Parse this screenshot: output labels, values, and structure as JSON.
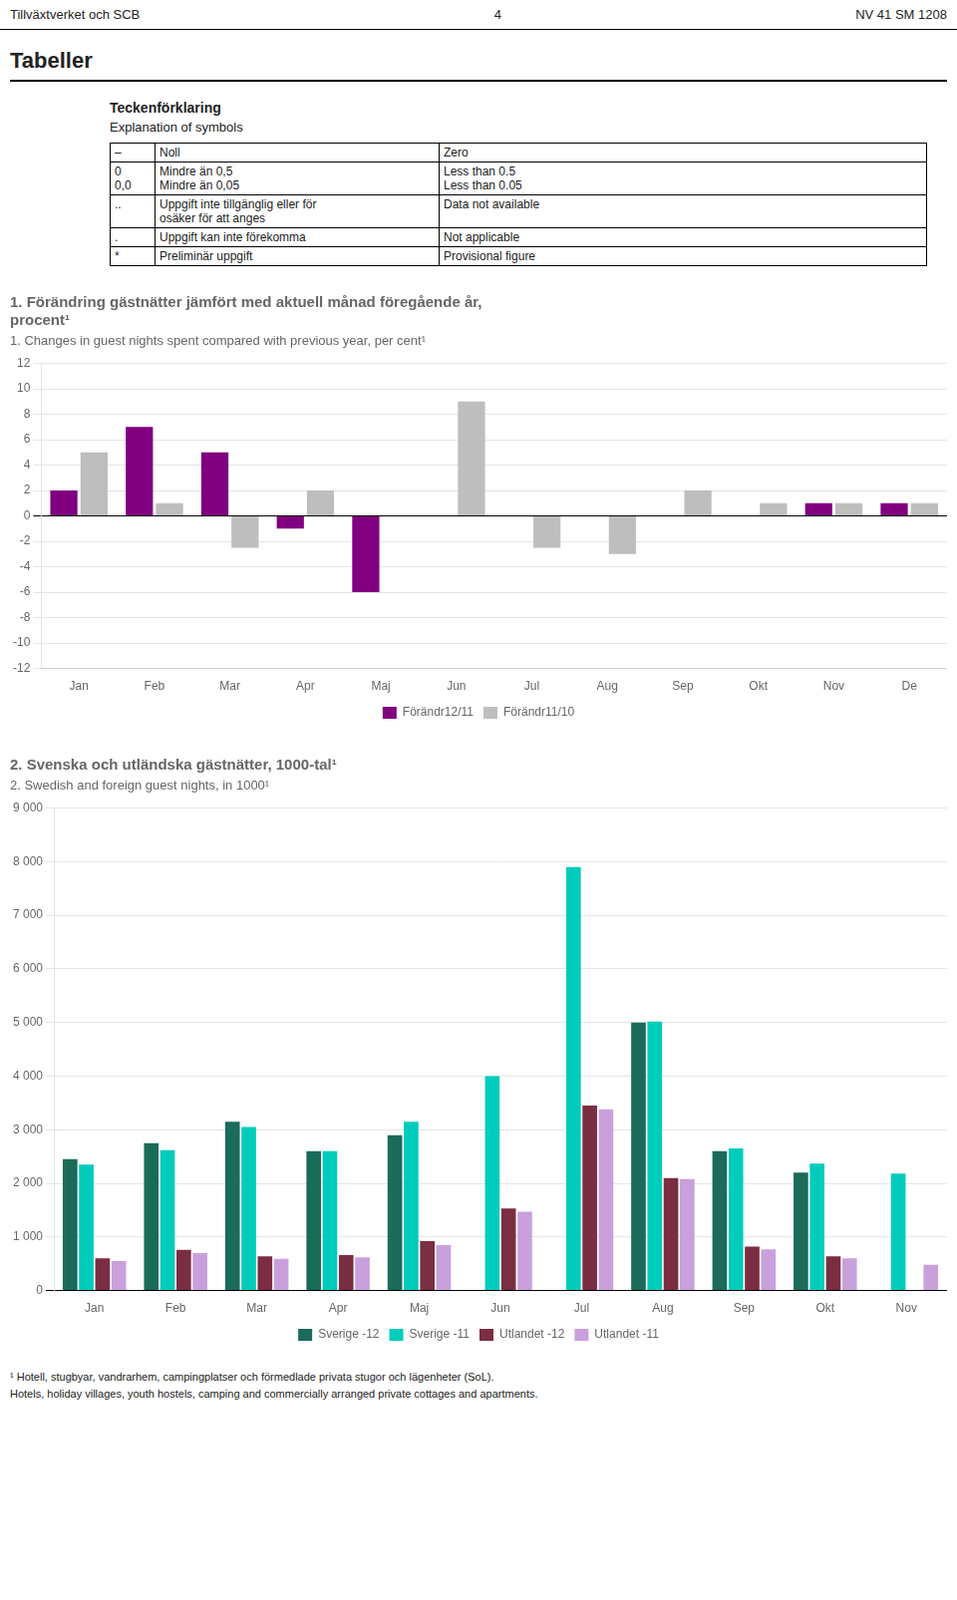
{
  "header": {
    "left": "Tillväxtverket och SCB",
    "center": "4",
    "right": "NV 41 SM 1208"
  },
  "section_title": "Tabeller",
  "symbols": {
    "title": "Teckenförklaring",
    "subtitle": "Explanation of symbols",
    "rows": [
      [
        "–",
        "Noll",
        "Zero"
      ],
      [
        "0\n0,0",
        "Mindre än 0,5\nMindre än 0,05",
        "Less than 0.5\nLess than 0.05"
      ],
      [
        "..",
        "Uppgift inte tillgänglig eller för\nosäker för att anges",
        "Data not available"
      ],
      [
        ".",
        "Uppgift kan inte förekomma",
        "Not applicable"
      ],
      [
        "*",
        "Preliminär uppgift",
        "Provisional figure"
      ]
    ]
  },
  "chart_data": [
    {
      "type": "bar",
      "title": "1. Förändring gästnätter jämfört med aktuell månad föregående år,\nprocent¹",
      "subtitle": "1. Changes in guest nights spent compared with previous year, per cent¹",
      "categories": [
        "Jan",
        "Feb",
        "Mar",
        "Apr",
        "Maj",
        "Jun",
        "Jul",
        "Aug",
        "Sep",
        "Okt",
        "Nov",
        "De"
      ],
      "series": [
        {
          "name": "Förändr12/11",
          "color": "#800080",
          "values": [
            2,
            7,
            5,
            -1,
            -6,
            0,
            0,
            0,
            0,
            0,
            1,
            1
          ]
        },
        {
          "name": "Förändr11/10",
          "color": "#BEBEBE",
          "values": [
            5,
            1,
            -2.5,
            2,
            0,
            9,
            -2.5,
            -3,
            2,
            1,
            1,
            1
          ]
        }
      ],
      "ylim": [
        -12,
        12
      ],
      "yticks": [
        -12,
        -10,
        -8,
        -6,
        -4,
        -2,
        0,
        2,
        4,
        6,
        8,
        10,
        12
      ],
      "grid": true,
      "legend": "bottom"
    },
    {
      "type": "bar",
      "title": "2. Svenska och utländska gästnätter, 1000-tal¹",
      "subtitle": "2. Swedish and foreign guest nights, in 1000¹",
      "categories": [
        "Jan",
        "Feb",
        "Mar",
        "Apr",
        "Maj",
        "Jun",
        "Jul",
        "Aug",
        "Sep",
        "Okt",
        "Nov"
      ],
      "series": [
        {
          "name": "Sverige -12",
          "color": "#1a6b5a",
          "values": [
            2450,
            2750,
            3150,
            2600,
            2900,
            0,
            0,
            5000,
            2600,
            2200,
            0
          ]
        },
        {
          "name": "Sverige -11",
          "color": "#00CCBB",
          "values": [
            2350,
            2620,
            3050,
            2600,
            3150,
            4000,
            7900,
            5020,
            2650,
            2370,
            2180
          ]
        },
        {
          "name": "Utlandet -12",
          "color": "#7B2D42",
          "values": [
            600,
            760,
            640,
            660,
            920,
            1530,
            3450,
            2100,
            820,
            640,
            0
          ]
        },
        {
          "name": "Utlandet -11",
          "color": "#C9A0DC",
          "values": [
            550,
            700,
            590,
            620,
            850,
            1470,
            3380,
            2080,
            770,
            600,
            480
          ]
        }
      ],
      "ylim": [
        0,
        9000
      ],
      "yticks": [
        0,
        {
          "value": 1000,
          "label": "1 000"
        },
        {
          "value": 2000,
          "label": "2 000"
        },
        {
          "value": 3000,
          "label": "3 000"
        },
        {
          "value": 4000,
          "label": "4 000"
        },
        {
          "value": 5000,
          "label": "5 000"
        },
        {
          "value": 6000,
          "label": "6 000"
        },
        {
          "value": 7000,
          "label": "7 000"
        },
        {
          "value": 8000,
          "label": "8 000"
        },
        {
          "value": 9000,
          "label": "9 000"
        }
      ],
      "grid": true,
      "legend": "bottom"
    }
  ],
  "footnotes": [
    "¹ Hotell, stugbyar, vandrarhem, campingplatser och förmedlade privata stugor och lägenheter (SoL).",
    "Hotels, holiday villages, youth hostels, camping and commercially arranged private cottages and apartments."
  ]
}
